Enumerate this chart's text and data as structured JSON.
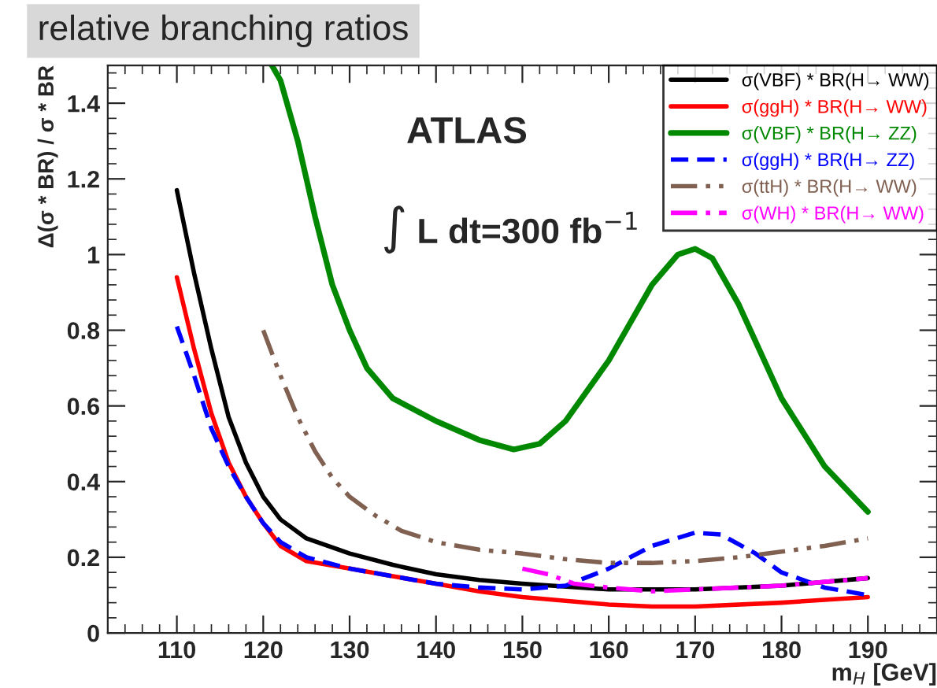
{
  "chart_data": {
    "type": "line",
    "title": "relative branching ratios",
    "xlabel": "m$_{H}$ [GeV]",
    "ylabel": "Δ(σ * BR) / σ * BR",
    "annotations": [
      "ATLAS",
      "∫ L dt=300 fb$^{−1}$"
    ],
    "xlim": [
      102,
      198
    ],
    "ylim": [
      0,
      1.5
    ],
    "xticks": [
      110,
      120,
      130,
      140,
      150,
      160,
      170,
      180,
      190
    ],
    "yticks": [
      0,
      0.2,
      0.4,
      0.6,
      0.8,
      1,
      1.2,
      1.4
    ],
    "grid": false,
    "legend": "top right",
    "marker": "none",
    "series": [
      {
        "name": "σ(VBF) * BR(H→ WW)",
        "color": "#000000",
        "line_style": "solid",
        "x": [
          110,
          112,
          114,
          116,
          118,
          120,
          122,
          125,
          130,
          135,
          140,
          145,
          150,
          160,
          170,
          180,
          190
        ],
        "values": [
          1.17,
          0.95,
          0.75,
          0.57,
          0.45,
          0.36,
          0.3,
          0.25,
          0.21,
          0.18,
          0.155,
          0.14,
          0.13,
          0.115,
          0.115,
          0.125,
          0.145
        ]
      },
      {
        "name": "σ(ggH) * BR(H→ WW)",
        "color": "#ff0000",
        "line_style": "solid",
        "x": [
          110,
          112,
          114,
          116,
          118,
          120,
          122,
          125,
          130,
          135,
          140,
          145,
          150,
          160,
          165,
          170,
          180,
          190
        ],
        "values": [
          0.94,
          0.75,
          0.58,
          0.45,
          0.36,
          0.29,
          0.23,
          0.19,
          0.17,
          0.15,
          0.13,
          0.11,
          0.095,
          0.075,
          0.07,
          0.07,
          0.08,
          0.095
        ]
      },
      {
        "name": "σ(VBF) * BR(H→ ZZ)",
        "color": "#008800",
        "line_style": "solid",
        "x": [
          121,
          122,
          124,
          126,
          128,
          130,
          132,
          135,
          140,
          145,
          149,
          152,
          155,
          160,
          165,
          168,
          170,
          172,
          175,
          180,
          185,
          190
        ],
        "values": [
          1.5,
          1.46,
          1.3,
          1.1,
          0.92,
          0.8,
          0.7,
          0.62,
          0.56,
          0.51,
          0.485,
          0.5,
          0.56,
          0.72,
          0.92,
          1.0,
          1.015,
          0.99,
          0.87,
          0.62,
          0.44,
          0.32
        ]
      },
      {
        "name": "σ(ggH) * BR(H→ ZZ)",
        "color": "#0000ff",
        "line_style": "dashed",
        "x": [
          110,
          112,
          114,
          116,
          118,
          120,
          122,
          125,
          130,
          135,
          140,
          145,
          150,
          155,
          160,
          165,
          170,
          173,
          177,
          180,
          185,
          190
        ],
        "values": [
          0.81,
          0.68,
          0.54,
          0.44,
          0.36,
          0.29,
          0.24,
          0.2,
          0.17,
          0.15,
          0.13,
          0.12,
          0.115,
          0.125,
          0.17,
          0.23,
          0.265,
          0.26,
          0.21,
          0.16,
          0.12,
          0.1
        ]
      },
      {
        "name": "σ(ttH) * BR(H→ WW)",
        "color": "#806050",
        "line_style": "dashdotdot",
        "x": [
          120,
          122,
          124,
          126,
          128,
          130,
          133,
          136,
          140,
          145,
          150,
          155,
          160,
          165,
          170,
          175,
          180,
          185,
          190
        ],
        "values": [
          0.8,
          0.68,
          0.57,
          0.48,
          0.41,
          0.36,
          0.31,
          0.27,
          0.24,
          0.22,
          0.21,
          0.195,
          0.185,
          0.185,
          0.19,
          0.2,
          0.215,
          0.23,
          0.25
        ]
      },
      {
        "name": "σ(WH) * BR(H→ WW)",
        "color": "#ff00ff",
        "line_style": "dashdot",
        "x": [
          150,
          153,
          156,
          160,
          165,
          170,
          180,
          190
        ],
        "values": [
          0.17,
          0.155,
          0.13,
          0.12,
          0.11,
          0.115,
          0.125,
          0.145
        ]
      }
    ]
  }
}
